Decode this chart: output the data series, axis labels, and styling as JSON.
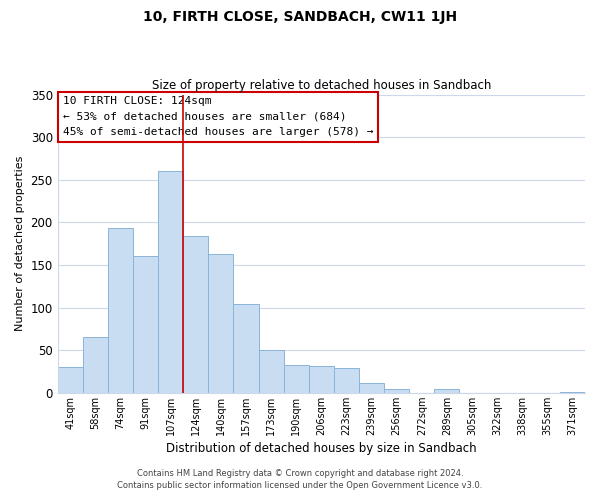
{
  "title": "10, FIRTH CLOSE, SANDBACH, CW11 1JH",
  "subtitle": "Size of property relative to detached houses in Sandbach",
  "xlabel": "Distribution of detached houses by size in Sandbach",
  "ylabel": "Number of detached properties",
  "bar_labels": [
    "41sqm",
    "58sqm",
    "74sqm",
    "91sqm",
    "107sqm",
    "124sqm",
    "140sqm",
    "157sqm",
    "173sqm",
    "190sqm",
    "206sqm",
    "223sqm",
    "239sqm",
    "256sqm",
    "272sqm",
    "289sqm",
    "305sqm",
    "322sqm",
    "338sqm",
    "355sqm",
    "371sqm"
  ],
  "bar_values": [
    30,
    65,
    193,
    161,
    260,
    184,
    163,
    104,
    50,
    33,
    31,
    29,
    11,
    4,
    0,
    5,
    0,
    0,
    0,
    0,
    1
  ],
  "highlight_index": 4,
  "bar_color": "#c9ddf2",
  "bar_edge_color": "#8ab4d8",
  "highlight_line_color": "#cc0000",
  "ylim": [
    0,
    350
  ],
  "yticks": [
    0,
    50,
    100,
    150,
    200,
    250,
    300,
    350
  ],
  "annotation_title": "10 FIRTH CLOSE: 124sqm",
  "annotation_line1": "← 53% of detached houses are smaller (684)",
  "annotation_line2": "45% of semi-detached houses are larger (578) →",
  "footnote1": "Contains HM Land Registry data © Crown copyright and database right 2024.",
  "footnote2": "Contains public sector information licensed under the Open Government Licence v3.0.",
  "background_color": "#ffffff",
  "grid_color": "#ccd8ea"
}
